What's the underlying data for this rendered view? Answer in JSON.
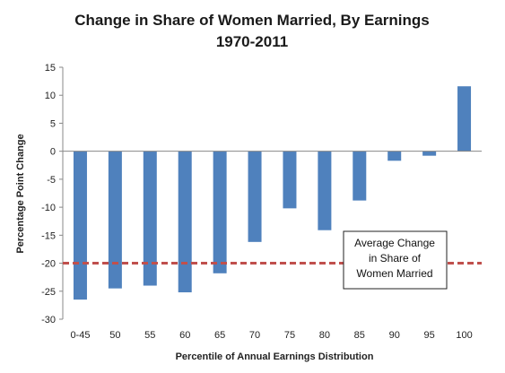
{
  "chart_data": {
    "type": "bar",
    "title_lines": [
      "Change in Share of Women Married, By Earnings",
      "1970-2011"
    ],
    "xlabel": "Percentile of Annual Earnings Distribution",
    "ylabel": "Percentage Point Change",
    "categories": [
      "0-45",
      "50",
      "55",
      "60",
      "65",
      "70",
      "75",
      "80",
      "85",
      "90",
      "95",
      "100"
    ],
    "values": [
      -26.5,
      -24.5,
      -24.0,
      -25.2,
      -21.8,
      -16.2,
      -10.2,
      -14.1,
      -8.8,
      -1.7,
      -0.8,
      11.6
    ],
    "ylim": [
      -30,
      15
    ],
    "yticks": [
      15,
      10,
      5,
      0,
      -5,
      -10,
      -15,
      -20,
      -25,
      -30
    ],
    "grid": false,
    "bar_color": "#4f81bd",
    "reference_line": {
      "value": -20,
      "color": "#c0504d",
      "style": "dashed",
      "label_lines": [
        "Average Change",
        "in Share of",
        "Women Married"
      ]
    }
  }
}
